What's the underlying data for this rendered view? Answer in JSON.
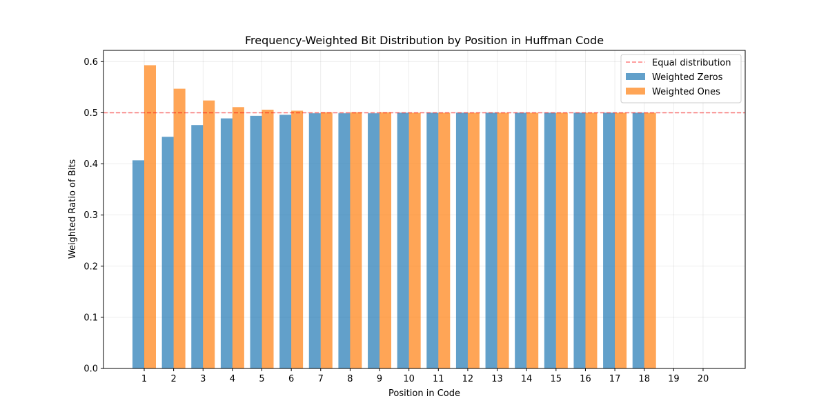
{
  "chart_data": {
    "type": "bar",
    "title": "Frequency-Weighted Bit Distribution by Position in Huffman Code",
    "xlabel": "Position in Code",
    "ylabel": "Weighted Ratio of Bits",
    "categories": [
      "1",
      "2",
      "3",
      "4",
      "5",
      "6",
      "7",
      "8",
      "9",
      "10",
      "11",
      "12",
      "13",
      "14",
      "15",
      "16",
      "17",
      "18",
      "19",
      "20"
    ],
    "series": [
      {
        "name": "Weighted Zeros",
        "color": "#1f77b4",
        "values": [
          0.407,
          0.453,
          0.476,
          0.489,
          0.494,
          0.496,
          0.499,
          0.499,
          0.499,
          0.5,
          0.5,
          0.5,
          0.5,
          0.5,
          0.5,
          0.5,
          0.5,
          0.5,
          null,
          null
        ]
      },
      {
        "name": "Weighted Ones",
        "color": "#ff7f0e",
        "values": [
          0.593,
          0.547,
          0.524,
          0.511,
          0.506,
          0.504,
          0.501,
          0.501,
          0.501,
          0.5,
          0.5,
          0.5,
          0.5,
          0.5,
          0.5,
          0.5,
          0.5,
          0.5,
          null,
          null
        ]
      }
    ],
    "reference_line": {
      "name": "Equal distribution",
      "value": 0.5,
      "color": "#ff0000",
      "style": "dashed"
    },
    "ylim": [
      0,
      0.622
    ],
    "yticks": [
      "0.0",
      "0.1",
      "0.2",
      "0.3",
      "0.4",
      "0.5",
      "0.6"
    ],
    "grid": true,
    "legend_position": "top-right"
  }
}
